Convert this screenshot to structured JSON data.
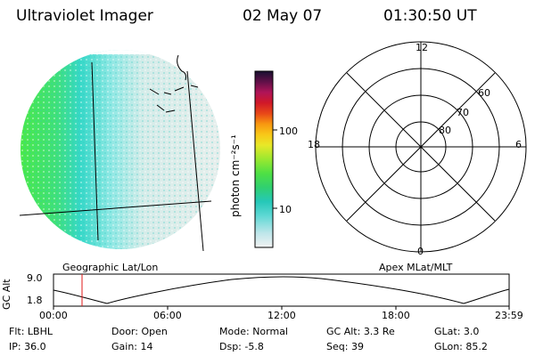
{
  "header": {
    "instrument": "Ultraviolet Imager",
    "date": "02 May 07",
    "time": "01:30:50 UT"
  },
  "colorbar": {
    "unit_label": "photon cm⁻²s⁻¹",
    "ticks": [
      "100",
      "10"
    ]
  },
  "polar_plot": {
    "mlt_labels": {
      "top": "12",
      "left": "18",
      "right": "6",
      "bottom": "0"
    },
    "lat_labels": [
      "60",
      "70",
      "80"
    ]
  },
  "map_labels": {
    "left": "Geographic Lat/Lon",
    "right": "Apex MLat/MLT"
  },
  "altitude_plot": {
    "axis_label": "GC Alt",
    "y_ticks": [
      "9.0",
      "1.8"
    ],
    "x_ticks": [
      "00:00",
      "06:00",
      "12:00",
      "18:00",
      "23:59"
    ]
  },
  "status": {
    "row1": [
      {
        "label": "Flt:",
        "value": "LBHL"
      },
      {
        "label": "Door:",
        "value": "Open"
      },
      {
        "label": "Mode:",
        "value": "Normal"
      },
      {
        "label": "GC Alt:",
        "value": "3.3 Re"
      },
      {
        "label": "GLat:",
        "value": "3.0"
      }
    ],
    "row2": [
      {
        "label": "IP:",
        "value": "36.0"
      },
      {
        "label": "Gain:",
        "value": "14"
      },
      {
        "label": "Dsp:",
        "value": "-5.8"
      },
      {
        "label": "Seq:",
        "value": "39"
      },
      {
        "label": "GLon:",
        "value": "85.2"
      }
    ]
  }
}
